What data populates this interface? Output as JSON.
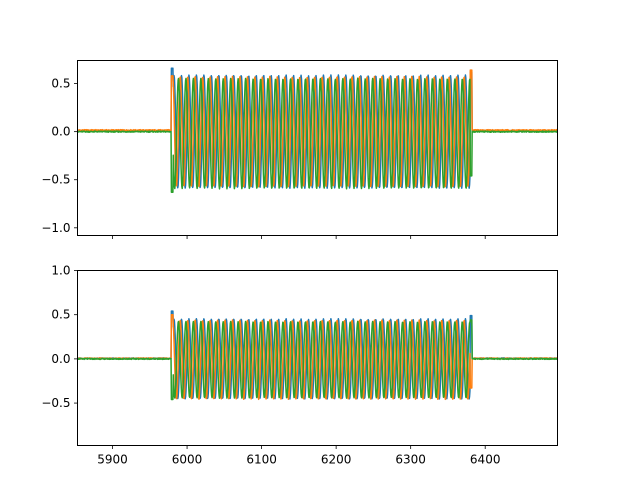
{
  "chart_data": [
    {
      "type": "line",
      "sharex": true,
      "xlim": [
        5853,
        6497
      ],
      "ylim": [
        -1.08,
        0.74
      ],
      "yticks": [
        0.5,
        0.0,
        -0.5,
        -1.0
      ],
      "ytick_labels": [
        "0.5",
        "0.0",
        "−0.5",
        "−1.0"
      ],
      "xticks": [
        5900,
        6000,
        6100,
        6200,
        6300,
        6400
      ],
      "burst": {
        "start": 5980,
        "end": 6381,
        "cycles": 40
      },
      "series": [
        {
          "color": "#1f77b4",
          "amplitude": 0.585,
          "offset": 0.0,
          "phase": 0.0,
          "baseline": 0.008,
          "edge_spike": [
            0.66,
            0.62
          ]
        },
        {
          "color": "#ff7f0e",
          "amplitude": 0.57,
          "offset": 0.0,
          "phase": 1.1,
          "baseline": 0.015,
          "edge_spike": [
            0.58,
            0.64
          ]
        },
        {
          "color": "#2ca02c",
          "amplitude": 0.57,
          "offset": -0.02,
          "phase": 2.6,
          "baseline": 0.0,
          "edge_spike": [
            -0.63,
            -0.46
          ]
        }
      ]
    },
    {
      "type": "line",
      "sharex": true,
      "xlim": [
        5853,
        6497
      ],
      "ylim": [
        -0.98,
        1.0
      ],
      "yticks": [
        1.0,
        0.5,
        0.0,
        -0.5
      ],
      "ytick_labels": [
        "1.0",
        "0.5",
        "0.0",
        "−0.5"
      ],
      "xticks": [
        5900,
        6000,
        6100,
        6200,
        6300,
        6400
      ],
      "xtick_labels": [
        "5900",
        "6000",
        "6100",
        "6200",
        "6300",
        "6400"
      ],
      "burst": {
        "start": 5980,
        "end": 6381,
        "cycles": 40
      },
      "series": [
        {
          "color": "#1f77b4",
          "amplitude": 0.45,
          "offset": 0.0,
          "phase": 0.0,
          "baseline": 0.005,
          "edge_spike": [
            0.54,
            0.49
          ]
        },
        {
          "color": "#ff7f0e",
          "amplitude": 0.445,
          "offset": -0.01,
          "phase": 1.1,
          "baseline": 0.005,
          "edge_spike": [
            0.5,
            -0.33
          ]
        },
        {
          "color": "#2ca02c",
          "amplitude": 0.43,
          "offset": -0.01,
          "phase": 2.6,
          "baseline": 0.0,
          "edge_spike": [
            -0.46,
            0.44
          ]
        }
      ]
    }
  ]
}
